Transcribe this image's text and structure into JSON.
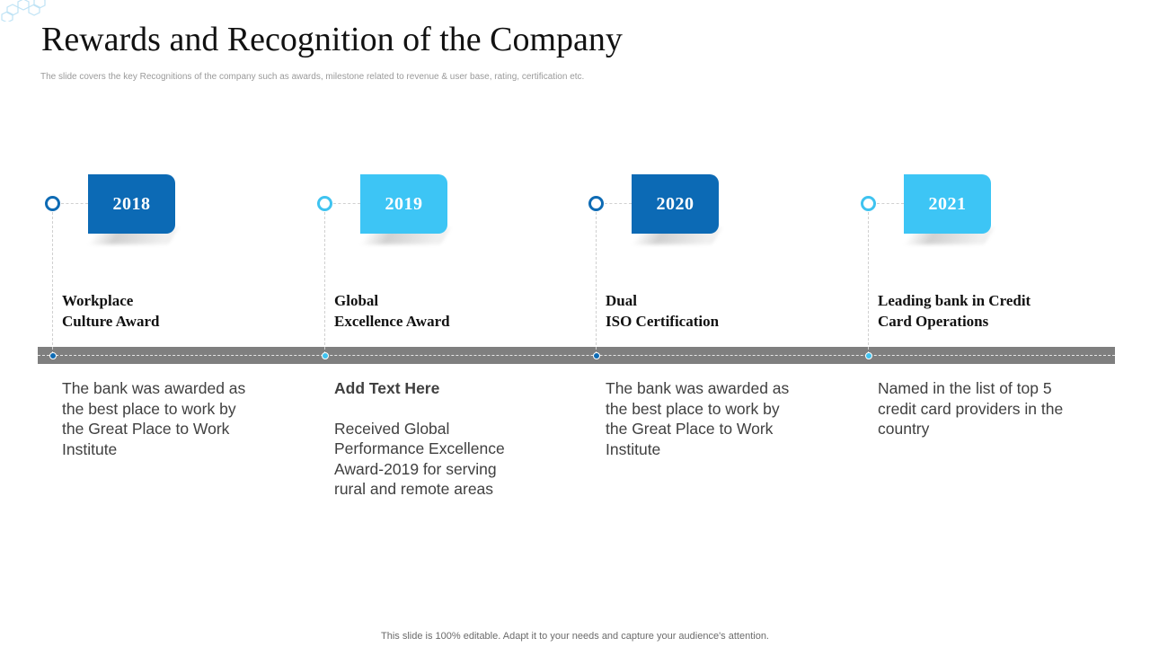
{
  "title": "Rewards and Recognition of the Company",
  "subtitle": "The slide covers the key Recognitions of the company such as awards, milestone related to revenue & user base, rating, certification etc.",
  "colors": {
    "dark_blue": "#0c6ab5",
    "light_blue": "#3dc5f5",
    "bar_gray": "#7f7f7f"
  },
  "milestones": [
    {
      "year": "2018",
      "award": "Workplace\nCulture Award",
      "heading": "",
      "description": "The bank was awarded as the best place to work by the Great Place to Work Institute"
    },
    {
      "year": "2019",
      "award": "Global\nExcellence Award",
      "heading": "Add Text Here",
      "description": "Received Global Performance Excellence Award-2019 for serving rural and remote areas"
    },
    {
      "year": "2020",
      "award": "Dual\nISO Certification",
      "heading": "",
      "description": "The bank was awarded as the best place to work by the Great Place to Work Institute"
    },
    {
      "year": "2021",
      "award": "Leading bank in Credit\nCard Operations",
      "heading": "",
      "description": "Named in the list of top 5 credit card providers in the country"
    }
  ],
  "footer": "This slide is 100% editable. Adapt it to your needs and capture your audience's attention."
}
